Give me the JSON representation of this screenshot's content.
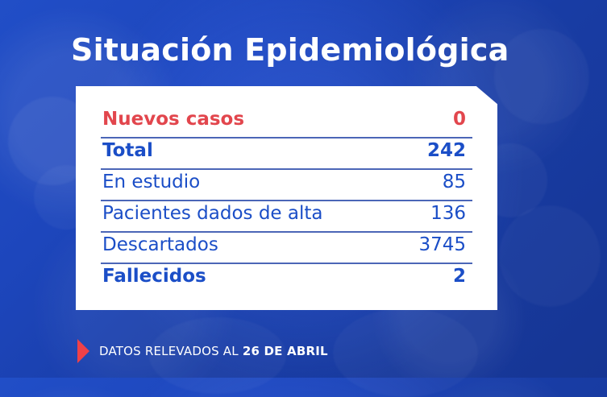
{
  "title": "Situación Epidemiológica",
  "stats": [
    {
      "label": "Nuevos casos",
      "value": "0"
    },
    {
      "label": "Total",
      "value": "242"
    },
    {
      "label": "En estudio",
      "value": "85"
    },
    {
      "label": "Pacientes dados de alta",
      "value": "136"
    },
    {
      "label": "Descartados",
      "value": "3745"
    },
    {
      "label": "Fallecidos",
      "value": "2"
    }
  ],
  "footer": {
    "prefix": "DATOS RELEVADOS AL",
    "date": "26 DE ABRIL"
  },
  "colors": {
    "background": "#1d46bc",
    "accent_red": "#e2464d",
    "accent_blue": "#1b4ec7",
    "card": "#ffffff"
  },
  "icons": {
    "footer_marker": "triangle-right"
  }
}
